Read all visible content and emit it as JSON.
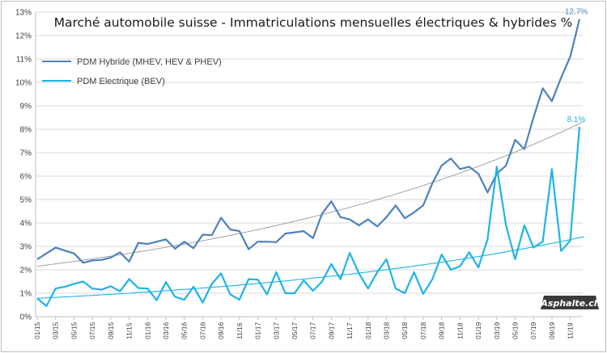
{
  "chart_data": {
    "type": "line",
    "title": "Marché automobile suisse - Immatriculations mensuelles électriques & hybrides %",
    "xlabel": "",
    "ylabel": "",
    "ylim": [
      0,
      13
    ],
    "yticks": [
      "0%",
      "1%",
      "2%",
      "3%",
      "4%",
      "5%",
      "6%",
      "7%",
      "8%",
      "9%",
      "10%",
      "11%",
      "12%",
      "13%"
    ],
    "grid": true,
    "legend_position": "top-left",
    "categories": [
      "01/15",
      "02/15",
      "03/15",
      "04/15",
      "05/15",
      "06/15",
      "07/15",
      "08/15",
      "09/15",
      "10/15",
      "11/15",
      "12/15",
      "01/16",
      "02/16",
      "03/16",
      "04/16",
      "05/16",
      "06/16",
      "07/16",
      "08/16",
      "09/16",
      "10/16",
      "11/16",
      "12/16",
      "01/17",
      "02/17",
      "03/17",
      "04/17",
      "05/17",
      "06/17",
      "07/17",
      "08/17",
      "09/17",
      "10/17",
      "11/17",
      "12/17",
      "01/18",
      "02/18",
      "03/18",
      "04/18",
      "05/18",
      "06/18",
      "07/18",
      "08/18",
      "09/18",
      "10/18",
      "11/18",
      "12/18",
      "01/19",
      "02/19",
      "03/19",
      "04/19",
      "05/19",
      "06/19",
      "07/19",
      "08/19",
      "09/19",
      "10/19",
      "11/19",
      "12/19"
    ],
    "x_tick_labels": [
      "01/15",
      "03/15",
      "05/15",
      "07/15",
      "09/15",
      "11/15",
      "01/16",
      "03/16",
      "05/16",
      "07/16",
      "09/16",
      "11/16",
      "01/17",
      "03/17",
      "05/17",
      "07/17",
      "09/17",
      "11/17",
      "01/18",
      "03/18",
      "05/18",
      "07/18",
      "09/18",
      "11/18",
      "01/19",
      "03/19",
      "05/19",
      "07/19",
      "09/19",
      "11/19"
    ],
    "series": [
      {
        "name": "PDM Hybride (MHEV, HEV & PHEV)",
        "color": "#4f81bd",
        "trendline": "exponential",
        "trend_color": "#8c8c8c",
        "values": [
          2.45,
          2.7,
          2.95,
          2.82,
          2.7,
          2.3,
          2.4,
          2.42,
          2.52,
          2.75,
          2.35,
          3.15,
          3.1,
          3.2,
          3.3,
          2.9,
          3.2,
          2.92,
          3.5,
          3.48,
          4.22,
          3.72,
          3.65,
          2.88,
          3.2,
          3.2,
          3.18,
          3.55,
          3.6,
          3.65,
          3.35,
          4.4,
          4.92,
          4.25,
          4.15,
          3.9,
          4.15,
          3.85,
          4.25,
          4.75,
          4.2,
          4.45,
          4.75,
          5.7,
          6.45,
          6.75,
          6.3,
          6.4,
          6.1,
          5.3,
          6.1,
          6.45,
          7.55,
          7.15,
          8.5,
          9.75,
          9.2,
          10.2,
          11.1,
          12.7
        ]
      },
      {
        "name": "PDM Electrique (BEV)",
        "color": "#1fb4e6",
        "trendline": "exponential",
        "trend_color": "#1fb4e6",
        "values": [
          0.78,
          0.45,
          1.2,
          1.28,
          1.4,
          1.5,
          1.2,
          1.15,
          1.3,
          1.08,
          1.6,
          1.22,
          1.2,
          0.7,
          1.48,
          0.85,
          0.72,
          1.28,
          0.6,
          1.4,
          1.85,
          0.95,
          0.72,
          1.6,
          1.58,
          0.95,
          1.9,
          1.0,
          1.0,
          1.55,
          1.1,
          1.5,
          2.25,
          1.6,
          2.72,
          1.85,
          1.2,
          1.9,
          2.45,
          1.2,
          1.0,
          1.9,
          0.97,
          1.6,
          2.65,
          2.0,
          2.15,
          2.75,
          2.1,
          3.3,
          6.4,
          3.9,
          2.45,
          3.9,
          2.95,
          3.2,
          6.3,
          2.8,
          3.25,
          8.1
        ]
      }
    ],
    "annotations": [
      {
        "text": "12.7%",
        "series": 0,
        "color": "#4f81bd"
      },
      {
        "text": "8.1%",
        "series": 1,
        "color": "#1fb4e6"
      }
    ],
    "watermark": "Asphalte.ch"
  }
}
